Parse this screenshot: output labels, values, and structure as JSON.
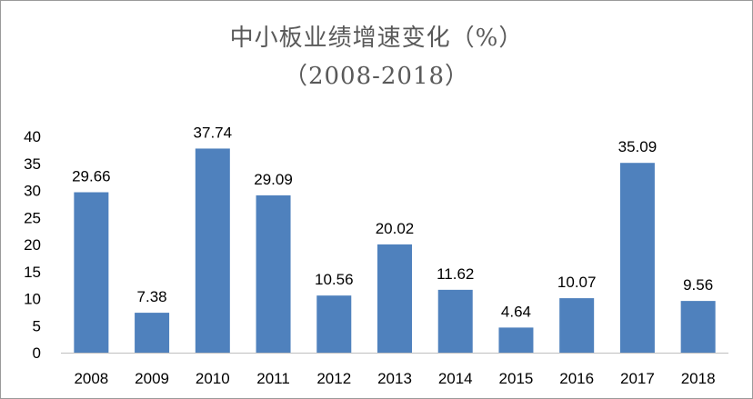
{
  "chart_data": {
    "type": "bar",
    "title": "中小板业绩增速变化（%）",
    "subtitle": "（2008-2018）",
    "categories": [
      "2008",
      "2009",
      "2010",
      "2011",
      "2012",
      "2013",
      "2014",
      "2015",
      "2016",
      "2017",
      "2018"
    ],
    "values": [
      29.66,
      7.38,
      37.74,
      29.09,
      10.56,
      20.02,
      11.62,
      4.64,
      10.07,
      35.09,
      9.56
    ],
    "value_labels": [
      "29.66",
      "7.38",
      "37.74",
      "29.09",
      "10.56",
      "20.02",
      "11.62",
      "4.64",
      "10.07",
      "35.09",
      "9.56"
    ],
    "ylim": [
      0,
      40
    ],
    "yticks": [
      "0",
      "5",
      "10",
      "15",
      "20",
      "25",
      "30",
      "35",
      "40"
    ],
    "xlabel": "",
    "ylabel": "",
    "bar_color": "#4f81bd",
    "grid": false,
    "legend": "none"
  }
}
